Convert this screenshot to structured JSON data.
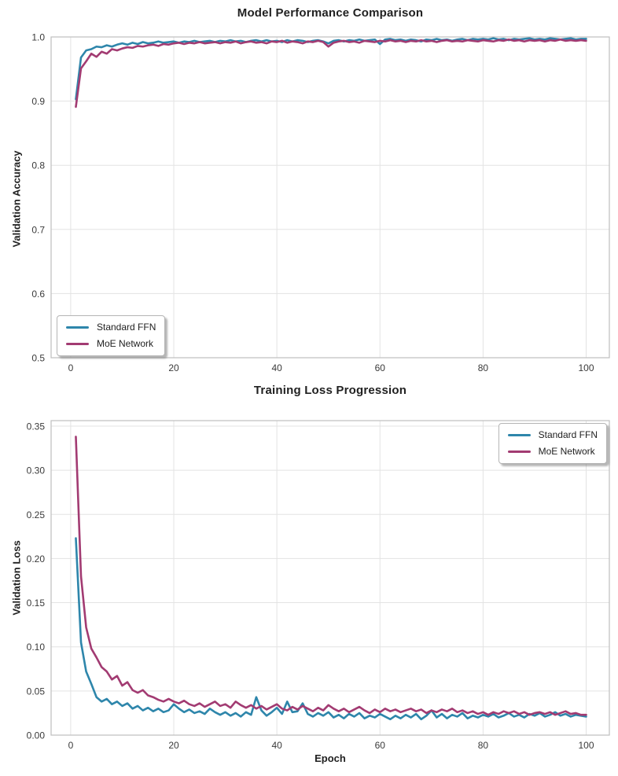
{
  "colors": {
    "standard_ffn": "#2E86AB",
    "moe_network": "#A23B72",
    "grid": "#e3e3e3",
    "spine": "#bfbfbf",
    "title_text": "#212121",
    "tick_text": "#3a3a3a",
    "background": "#ffffff"
  },
  "chart_data": [
    {
      "type": "line",
      "title": "Model Performance Comparison",
      "xlabel": "",
      "ylabel": "Validation Accuracy",
      "grid": true,
      "legend_position": "lower left",
      "xlim": [
        -3.8,
        104.5
      ],
      "ylim": [
        0.5,
        1.0
      ],
      "xticks": [
        0,
        20,
        40,
        60,
        80,
        100
      ],
      "xtick_labels": [
        "0",
        "20",
        "40",
        "60",
        "80",
        "100"
      ],
      "yticks": [
        0.5,
        0.6,
        0.7,
        0.8,
        0.9,
        1.0
      ],
      "ytick_labels": [
        "0.5",
        "0.6",
        "0.7",
        "0.8",
        "0.9",
        "1.0"
      ],
      "x": [
        1,
        2,
        3,
        4,
        5,
        6,
        7,
        8,
        9,
        10,
        11,
        12,
        13,
        14,
        15,
        16,
        17,
        18,
        19,
        20,
        21,
        22,
        23,
        24,
        25,
        26,
        27,
        28,
        29,
        30,
        31,
        32,
        33,
        34,
        35,
        36,
        37,
        38,
        39,
        40,
        41,
        42,
        43,
        44,
        45,
        46,
        47,
        48,
        49,
        50,
        51,
        52,
        53,
        54,
        55,
        56,
        57,
        58,
        59,
        60,
        61,
        62,
        63,
        64,
        65,
        66,
        67,
        68,
        69,
        70,
        71,
        72,
        73,
        74,
        75,
        76,
        77,
        78,
        79,
        80,
        81,
        82,
        83,
        84,
        85,
        86,
        87,
        88,
        89,
        90,
        91,
        92,
        93,
        94,
        95,
        96,
        97,
        98,
        99,
        100
      ],
      "series": [
        {
          "name": "Standard FFN",
          "color": "#2E86AB",
          "values": [
            0.903,
            0.968,
            0.979,
            0.981,
            0.985,
            0.984,
            0.987,
            0.985,
            0.988,
            0.99,
            0.988,
            0.991,
            0.989,
            0.992,
            0.99,
            0.991,
            0.993,
            0.991,
            0.992,
            0.993,
            0.991,
            0.993,
            0.992,
            0.994,
            0.992,
            0.993,
            0.994,
            0.992,
            0.994,
            0.993,
            0.995,
            0.993,
            0.994,
            0.992,
            0.994,
            0.995,
            0.993,
            0.995,
            0.993,
            0.994,
            0.992,
            0.995,
            0.993,
            0.995,
            0.994,
            0.992,
            0.994,
            0.995,
            0.993,
            0.99,
            0.994,
            0.995,
            0.993,
            0.995,
            0.994,
            0.996,
            0.994,
            0.995,
            0.996,
            0.989,
            0.996,
            0.997,
            0.995,
            0.996,
            0.994,
            0.996,
            0.995,
            0.993,
            0.996,
            0.995,
            0.997,
            0.995,
            0.996,
            0.994,
            0.996,
            0.997,
            0.995,
            0.997,
            0.996,
            0.997,
            0.996,
            0.998,
            0.996,
            0.997,
            0.995,
            0.997,
            0.996,
            0.997,
            0.998,
            0.996,
            0.997,
            0.996,
            0.998,
            0.997,
            0.996,
            0.997,
            0.998,
            0.996,
            0.997,
            0.997
          ]
        },
        {
          "name": "MoE Network",
          "color": "#A23B72",
          "values": [
            0.891,
            0.951,
            0.962,
            0.974,
            0.969,
            0.977,
            0.974,
            0.981,
            0.979,
            0.982,
            0.984,
            0.983,
            0.986,
            0.985,
            0.987,
            0.988,
            0.986,
            0.989,
            0.988,
            0.99,
            0.991,
            0.989,
            0.991,
            0.99,
            0.992,
            0.99,
            0.991,
            0.992,
            0.99,
            0.992,
            0.991,
            0.993,
            0.99,
            0.992,
            0.993,
            0.991,
            0.992,
            0.99,
            0.993,
            0.992,
            0.994,
            0.991,
            0.993,
            0.992,
            0.99,
            0.993,
            0.992,
            0.994,
            0.992,
            0.985,
            0.991,
            0.993,
            0.994,
            0.992,
            0.993,
            0.991,
            0.994,
            0.993,
            0.992,
            0.994,
            0.993,
            0.995,
            0.993,
            0.994,
            0.992,
            0.994,
            0.993,
            0.995,
            0.993,
            0.994,
            0.992,
            0.994,
            0.995,
            0.993,
            0.994,
            0.993,
            0.995,
            0.994,
            0.993,
            0.995,
            0.994,
            0.993,
            0.995,
            0.994,
            0.996,
            0.994,
            0.995,
            0.993,
            0.995,
            0.994,
            0.995,
            0.993,
            0.995,
            0.994,
            0.996,
            0.994,
            0.995,
            0.994,
            0.995,
            0.994
          ]
        }
      ]
    },
    {
      "type": "line",
      "title": "Training Loss Progression",
      "xlabel": "Epoch",
      "ylabel": "Validation Loss",
      "grid": true,
      "legend_position": "upper right",
      "xlim": [
        -3.8,
        104.5
      ],
      "ylim": [
        0,
        0.3562
      ],
      "xticks": [
        0,
        20,
        40,
        60,
        80,
        100
      ],
      "xtick_labels": [
        "0",
        "20",
        "40",
        "60",
        "80",
        "100"
      ],
      "yticks": [
        0,
        0.05,
        0.1,
        0.15,
        0.2,
        0.25,
        0.3,
        0.35
      ],
      "ytick_labels": [
        "0.00",
        "0.05",
        "0.10",
        "0.15",
        "0.20",
        "0.25",
        "0.30",
        "0.35"
      ],
      "x": [
        1,
        2,
        3,
        4,
        5,
        6,
        7,
        8,
        9,
        10,
        11,
        12,
        13,
        14,
        15,
        16,
        17,
        18,
        19,
        20,
        21,
        22,
        23,
        24,
        25,
        26,
        27,
        28,
        29,
        30,
        31,
        32,
        33,
        34,
        35,
        36,
        37,
        38,
        39,
        40,
        41,
        42,
        43,
        44,
        45,
        46,
        47,
        48,
        49,
        50,
        51,
        52,
        53,
        54,
        55,
        56,
        57,
        58,
        59,
        60,
        61,
        62,
        63,
        64,
        65,
        66,
        67,
        68,
        69,
        70,
        71,
        72,
        73,
        74,
        75,
        76,
        77,
        78,
        79,
        80,
        81,
        82,
        83,
        84,
        85,
        86,
        87,
        88,
        89,
        90,
        91,
        92,
        93,
        94,
        95,
        96,
        97,
        98,
        99,
        100
      ],
      "series": [
        {
          "name": "Standard FFN",
          "color": "#2E86AB",
          "values": [
            0.223,
            0.105,
            0.072,
            0.058,
            0.043,
            0.038,
            0.041,
            0.035,
            0.038,
            0.033,
            0.036,
            0.03,
            0.033,
            0.028,
            0.031,
            0.027,
            0.03,
            0.026,
            0.028,
            0.035,
            0.03,
            0.026,
            0.029,
            0.025,
            0.027,
            0.024,
            0.03,
            0.026,
            0.023,
            0.026,
            0.022,
            0.025,
            0.021,
            0.026,
            0.023,
            0.043,
            0.028,
            0.022,
            0.026,
            0.031,
            0.024,
            0.038,
            0.026,
            0.027,
            0.036,
            0.024,
            0.021,
            0.025,
            0.022,
            0.026,
            0.02,
            0.023,
            0.019,
            0.024,
            0.021,
            0.025,
            0.019,
            0.022,
            0.02,
            0.024,
            0.021,
            0.018,
            0.022,
            0.019,
            0.023,
            0.02,
            0.024,
            0.018,
            0.022,
            0.028,
            0.02,
            0.024,
            0.019,
            0.023,
            0.021,
            0.025,
            0.019,
            0.022,
            0.02,
            0.023,
            0.021,
            0.024,
            0.02,
            0.022,
            0.025,
            0.021,
            0.023,
            0.02,
            0.024,
            0.022,
            0.025,
            0.021,
            0.023,
            0.026,
            0.022,
            0.024,
            0.021,
            0.023,
            0.022,
            0.021
          ]
        },
        {
          "name": "MoE Network",
          "color": "#A23B72",
          "values": [
            0.338,
            0.18,
            0.122,
            0.098,
            0.088,
            0.077,
            0.072,
            0.063,
            0.067,
            0.056,
            0.06,
            0.051,
            0.048,
            0.051,
            0.045,
            0.043,
            0.04,
            0.038,
            0.041,
            0.038,
            0.036,
            0.039,
            0.035,
            0.033,
            0.036,
            0.032,
            0.035,
            0.038,
            0.033,
            0.035,
            0.031,
            0.038,
            0.034,
            0.031,
            0.034,
            0.03,
            0.033,
            0.029,
            0.032,
            0.035,
            0.03,
            0.028,
            0.032,
            0.029,
            0.033,
            0.03,
            0.027,
            0.031,
            0.028,
            0.034,
            0.03,
            0.027,
            0.03,
            0.026,
            0.029,
            0.032,
            0.028,
            0.025,
            0.029,
            0.026,
            0.03,
            0.027,
            0.029,
            0.026,
            0.028,
            0.03,
            0.027,
            0.029,
            0.025,
            0.028,
            0.026,
            0.029,
            0.027,
            0.03,
            0.026,
            0.028,
            0.025,
            0.027,
            0.024,
            0.026,
            0.023,
            0.026,
            0.024,
            0.027,
            0.025,
            0.027,
            0.024,
            0.026,
            0.023,
            0.025,
            0.026,
            0.024,
            0.026,
            0.023,
            0.025,
            0.027,
            0.024,
            0.025,
            0.023,
            0.023
          ]
        }
      ]
    }
  ]
}
